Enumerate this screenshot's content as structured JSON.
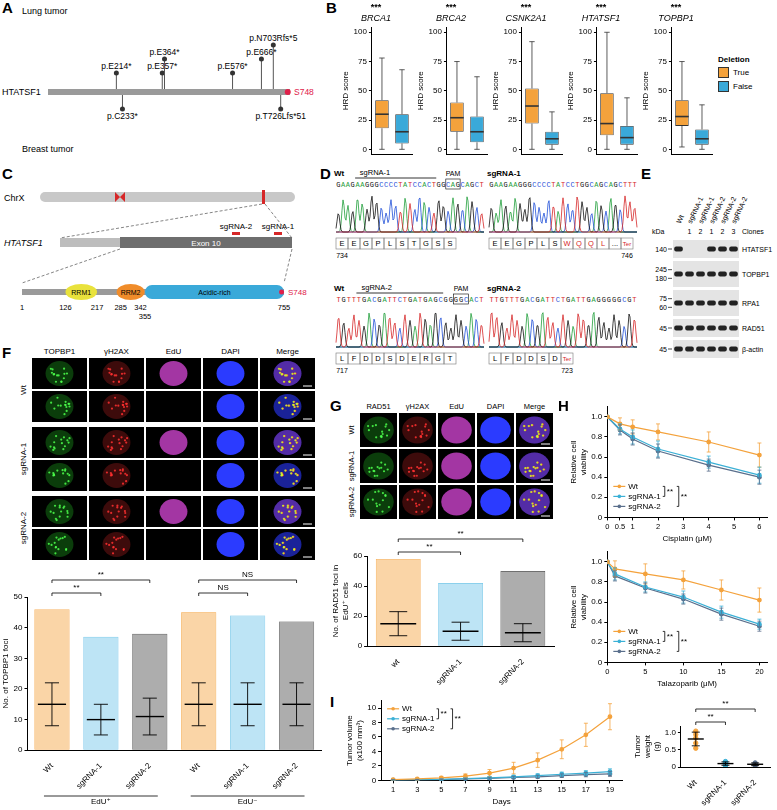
{
  "panel_letters": [
    "A",
    "B",
    "C",
    "D",
    "E",
    "F",
    "G",
    "H",
    "I"
  ],
  "A": {
    "gene": "HTATSF1",
    "length": 755,
    "tracks": [
      "Lung tumor",
      "Breast tumor"
    ],
    "above": [
      {
        "label": "p.E214*",
        "pos": 214
      },
      {
        "label": "p.E357*",
        "pos": 357
      },
      {
        "label": "p.E364*",
        "pos": 364
      },
      {
        "label": "p.E576*",
        "pos": 576
      },
      {
        "label": "p.E666*",
        "pos": 666
      },
      {
        "label": "p.N703Rfs*5",
        "pos": 703
      }
    ],
    "below": [
      {
        "label": "p.C233*",
        "pos": 233
      },
      {
        "label": "p.T726Lfs*51",
        "pos": 726
      }
    ],
    "site": {
      "label": "S748",
      "pos": 748
    }
  },
  "C": {
    "chromosome": "ChrX",
    "gene": "HTATSF1",
    "exon": "Exon 10",
    "sgrnas": [
      "sgRNA-2",
      "sgRNA-1"
    ],
    "protein": {
      "start": 1,
      "length": 755,
      "domains": [
        {
          "name": "RRM1",
          "start": 126,
          "end": 217,
          "color": "#e9e23c"
        },
        {
          "name": "RRM2",
          "start": 285,
          "end": 342,
          "color": "#f08c2a"
        },
        {
          "name": "Acidic-rich",
          "start": 355,
          "end": 755,
          "color": "#3aa9d9"
        }
      ],
      "site": {
        "label": "S748",
        "pos": 748
      }
    }
  },
  "D": {
    "panels": [
      {
        "row_label": "Wt",
        "guide": "sgRNA-1",
        "pam": "PAM",
        "sequence": "GAAGAAGGGCCCCTATCCACTGGCAGCAGCT",
        "start": 734,
        "residues": [
          "E",
          "E",
          "G",
          "P",
          "L",
          "S",
          "T",
          "G",
          "S",
          "S"
        ]
      },
      {
        "row_label": "sgRNA-1",
        "sequence": "GAAGAAGGGCCCCTATCCTGGCAGCAGCTTT",
        "residues": [
          "E",
          "E",
          "G",
          "P",
          "L",
          "S",
          "W",
          "Q",
          "Q",
          "L",
          "..."
        ],
        "changed": [
          6,
          7,
          8,
          9
        ],
        "end": {
          "number": 746,
          "label": "Ter"
        }
      },
      {
        "row_label": "Wt",
        "guide": "sgRNA-2",
        "pam": "PAM",
        "sequence": "TGTTTGACGATTCTGATGAGCGGGGCACT",
        "start": 717,
        "residues": [
          "L",
          "F",
          "D",
          "D",
          "S",
          "D",
          "E",
          "R",
          "G",
          "T"
        ]
      },
      {
        "row_label": "sgRNA-2",
        "sequence": "TTGTTTGACGATTCTGATTGAGGGGGCGT",
        "residues": [
          "L",
          "F",
          "D",
          "D",
          "S",
          "D"
        ],
        "end": {
          "number": 723,
          "label": "Ter"
        }
      }
    ]
  },
  "E": {
    "size_unit": "kDa",
    "clone_title": "Clones",
    "lanes": [
      {
        "label": "Wt"
      },
      {
        "label": "sgRNA-1",
        "clone": 1
      },
      {
        "label": "sgRNA-1",
        "clone": 2
      },
      {
        "label": "sgRNA-2",
        "clone": 1
      },
      {
        "label": "sgRNA-2",
        "clone": 2
      },
      {
        "label": "sgRNA-2",
        "clone": 3
      }
    ],
    "rows": [
      {
        "name": "HTATSF1",
        "markers": [
          140
        ],
        "bands": [
          true,
          false,
          false,
          true,
          true,
          true
        ]
      },
      {
        "name": "TOPBP1",
        "markers": [
          245,
          180
        ],
        "bands": [
          true,
          true,
          true,
          true,
          true,
          true
        ]
      },
      {
        "name": "RPA1",
        "markers": [
          75,
          60
        ],
        "bands": [
          true,
          true,
          true,
          true,
          true,
          true
        ]
      },
      {
        "name": "RAD51",
        "markers": [
          45
        ],
        "bands": [
          true,
          true,
          true,
          true,
          true,
          true
        ]
      },
      {
        "name": "β-actin",
        "markers": [
          45
        ],
        "bands": [
          true,
          true,
          true,
          true,
          true,
          true
        ]
      }
    ]
  },
  "F_images": {
    "channels": [
      "TOPBP1",
      "γH2AX",
      "EdU",
      "DAPI",
      "Merge"
    ],
    "rows": [
      {
        "label": "Wt",
        "edu": [
          true,
          false
        ]
      },
      {
        "label": "sgRNA-1",
        "edu": [
          true,
          false
        ]
      },
      {
        "label": "sgRNA-2",
        "edu": [
          true,
          false
        ]
      }
    ]
  },
  "G_images": {
    "channels": [
      "RAD51",
      "γH2AX",
      "EdU",
      "DAPI",
      "Merge"
    ],
    "rows": [
      {
        "label": "Wt"
      },
      {
        "label": "sgRNA-1"
      },
      {
        "label": "sgRNA-2"
      }
    ]
  },
  "chart_data": [
    {
      "type": "boxplot",
      "y_label": "HRD score",
      "ylim": [
        -4,
        104
      ],
      "yticks": [
        0,
        25,
        50,
        75,
        100
      ],
      "grid": false,
      "tick_labels": "y",
      "legend": "right",
      "legend_title": "Deletion",
      "series": [
        {
          "name": "True",
          "color": "#f4a23c"
        },
        {
          "name": "False",
          "color": "#3aa9d9"
        }
      ],
      "groups": [
        {
          "title": "BRCA1",
          "annotation": "***",
          "boxes": [
            [
              0,
              18,
              30,
              42,
              78
            ],
            [
              0,
              5,
              15,
              30,
              68
            ]
          ]
        },
        {
          "title": "BRCA2",
          "annotation": "***",
          "boxes": [
            [
              0,
              15,
              27,
              40,
              75
            ],
            [
              0,
              6,
              15,
              28,
              62
            ]
          ]
        },
        {
          "title": "CSNK2A1",
          "annotation": "***",
          "boxes": [
            [
              0,
              22,
              37,
              52,
              92
            ],
            [
              0,
              4,
              9,
              15,
              32
            ]
          ]
        },
        {
          "title": "HTATSF1",
          "annotation": "***",
          "boxes": [
            [
              0,
              12,
              22,
              48,
              100
            ],
            [
              0,
              4,
              10,
              20,
              44
            ]
          ]
        },
        {
          "title": "TOPBP1",
          "annotation": "***",
          "boxes": [
            [
              2,
              20,
              28,
              42,
              75
            ],
            [
              0,
              4,
              9,
              17,
              38
            ]
          ]
        }
      ]
    },
    {
      "type": "dot",
      "y_label": "No. of TOPBP1 foci",
      "categories": [
        "Wt",
        "sgRNA-1",
        "sgRNA-2",
        "Wt",
        "sgRNA-1",
        "sgRNA-2"
      ],
      "groups": [
        {
          "label": "EdU⁺",
          "size": 3
        },
        {
          "label": "EdU⁻",
          "size": 3
        }
      ],
      "colors": [
        "#f4a23c",
        "#6cc3e8",
        "#4a4a4a",
        "#f4a23c",
        "#6cc3e8",
        "#4a4a4a"
      ],
      "mean": [
        15,
        10,
        11,
        15,
        15,
        15
      ],
      "sd": [
        7,
        5,
        6,
        7,
        7,
        7
      ],
      "range": [
        [
          0,
          46
        ],
        [
          0,
          37
        ],
        [
          0,
          38
        ],
        [
          0,
          45
        ],
        [
          0,
          44
        ],
        [
          0,
          42
        ]
      ],
      "ylim": [
        0,
        50
      ],
      "yticks": [
        0,
        10,
        20,
        30,
        40,
        50
      ],
      "grid": false,
      "comparisons": [
        {
          "pair": [
            0,
            1
          ],
          "label": "**"
        },
        {
          "pair": [
            0,
            2
          ],
          "label": "**"
        },
        {
          "pair": [
            3,
            4
          ],
          "label": "NS"
        },
        {
          "pair": [
            3,
            5
          ],
          "label": "NS"
        }
      ]
    },
    {
      "type": "dot",
      "y_label": "No. of RAD51 foci in EdU⁺ cells",
      "categories": [
        "wt",
        "sgRNA-1",
        "sgRNA-2"
      ],
      "colors": [
        "#f4a23c",
        "#6cc3e8",
        "#4a4a4a"
      ],
      "mean": [
        15,
        10,
        9
      ],
      "sd": [
        8,
        6,
        6
      ],
      "range": [
        [
          0,
          58
        ],
        [
          0,
          42
        ],
        [
          0,
          50
        ]
      ],
      "ylim": [
        0,
        60
      ],
      "yticks": [
        0,
        20,
        40,
        60
      ],
      "grid": false,
      "comparisons": [
        {
          "pair": [
            0,
            1
          ],
          "label": "**"
        },
        {
          "pair": [
            0,
            2
          ],
          "label": "**"
        }
      ]
    },
    {
      "type": "line",
      "x_label": "Cisplatin (μM)",
      "y_label": "Relative cell viability",
      "x": [
        0,
        0.5,
        1,
        2,
        4,
        6
      ],
      "xlim": [
        0,
        6.3
      ],
      "xticks": [
        0,
        0.5,
        1,
        2,
        3,
        4,
        5,
        6
      ],
      "ylim": [
        0,
        1.1
      ],
      "yticks": [
        0,
        0.2,
        0.4,
        0.6,
        0.8,
        {
          "value": 1,
          "label": "1.0"
        }
      ],
      "marker": "circle",
      "legend": "lower left",
      "grid": false,
      "series": [
        {
          "name": "Wt",
          "color": "#f4a23c",
          "values": [
            1,
            0.93,
            0.9,
            0.85,
            0.75,
            0.62
          ],
          "errors": [
            0,
            0.06,
            0.07,
            0.08,
            0.1,
            0.12
          ]
        },
        {
          "name": "sgRNA-1",
          "color": "#3bb0d6",
          "values": [
            1,
            0.88,
            0.8,
            0.68,
            0.55,
            0.42
          ],
          "errors": [
            0,
            0.05,
            0.07,
            0.08,
            0.06,
            0.08
          ]
        },
        {
          "name": "sgRNA-2",
          "color": "#5a6f8c",
          "values": [
            1,
            0.87,
            0.78,
            0.66,
            0.52,
            0.4
          ],
          "errors": [
            0,
            0.05,
            0.06,
            0.07,
            0.06,
            0.07
          ]
        }
      ],
      "comparisons": [
        {
          "pair": [
            0,
            1
          ],
          "label": "**"
        },
        {
          "pair": [
            0,
            2
          ],
          "label": "**"
        }
      ]
    },
    {
      "type": "line",
      "x_label": "Talazoparib (μM)",
      "y_label": "Relative cell viability",
      "x": [
        0,
        1,
        5,
        10,
        15,
        20
      ],
      "xlim": [
        0,
        21
      ],
      "xticks": [
        0,
        5,
        10,
        15,
        20
      ],
      "ylim": [
        0,
        1.1
      ],
      "yticks": [
        0,
        0.2,
        0.4,
        0.6,
        0.8,
        {
          "value": 1,
          "label": "1.0"
        }
      ],
      "marker": "circle",
      "legend": "lower left",
      "grid": false,
      "series": [
        {
          "name": "Wt",
          "color": "#f4a23c",
          "values": [
            1,
            0.93,
            0.88,
            0.82,
            0.72,
            0.62
          ],
          "errors": [
            0,
            0.08,
            0.1,
            0.09,
            0.1,
            0.12
          ]
        },
        {
          "name": "sgRNA-1",
          "color": "#3bb0d6",
          "values": [
            1,
            0.88,
            0.75,
            0.65,
            0.5,
            0.38
          ],
          "errors": [
            0,
            0.06,
            0.05,
            0.06,
            0.06,
            0.05
          ]
        },
        {
          "name": "sgRNA-2",
          "color": "#5a6f8c",
          "values": [
            1,
            0.86,
            0.74,
            0.63,
            0.48,
            0.36
          ],
          "errors": [
            0,
            0.05,
            0.05,
            0.05,
            0.06,
            0.05
          ]
        }
      ],
      "comparisons": [
        {
          "pair": [
            0,
            1
          ],
          "label": "**"
        },
        {
          "pair": [
            0,
            2
          ],
          "label": "**"
        }
      ]
    },
    {
      "type": "line",
      "x_label": "Days",
      "y_label": "Tumor volume (x100 mm³)",
      "x": [
        1,
        3,
        5,
        7,
        9,
        11,
        13,
        15,
        17,
        19
      ],
      "xlim": [
        0,
        20
      ],
      "xticks": [
        1,
        3,
        5,
        7,
        9,
        11,
        13,
        15,
        17,
        19
      ],
      "ylim": [
        0,
        11
      ],
      "yticks": [
        0,
        2,
        4,
        6,
        8,
        10
      ],
      "marker": "circle",
      "legend": "upper left",
      "grid": false,
      "series": [
        {
          "name": "Wt",
          "color": "#f4a23c",
          "values": [
            0.1,
            0.2,
            0.35,
            0.6,
            1.0,
            1.7,
            2.8,
            4.3,
            6.3,
            8.8
          ],
          "errors": [
            0.05,
            0.1,
            0.2,
            0.3,
            0.5,
            0.8,
            1.0,
            1.3,
            1.6,
            1.8
          ]
        },
        {
          "name": "sgRNA-1",
          "color": "#3bb0d6",
          "values": [
            0.05,
            0.1,
            0.15,
            0.25,
            0.35,
            0.5,
            0.65,
            0.85,
            1.0,
            1.2
          ],
          "errors": [
            0.03,
            0.05,
            0.08,
            0.1,
            0.15,
            0.2,
            0.25,
            0.3,
            0.35,
            0.4
          ]
        },
        {
          "name": "sgRNA-2",
          "color": "#5a6f8c",
          "values": [
            0.05,
            0.08,
            0.12,
            0.2,
            0.28,
            0.4,
            0.5,
            0.65,
            0.8,
            0.9
          ],
          "errors": [
            0.03,
            0.04,
            0.06,
            0.08,
            0.1,
            0.15,
            0.2,
            0.25,
            0.3,
            0.35
          ]
        }
      ],
      "comparisons": [
        {
          "pair": [
            0,
            1
          ],
          "label": "**"
        },
        {
          "pair": [
            0,
            2
          ],
          "label": "**"
        }
      ]
    },
    {
      "type": "scatter",
      "y_label": "Tumor weight (g)",
      "categories": [
        "Wt",
        "sgRNA-1",
        "sgRNA-2"
      ],
      "colors": [
        "#f4a23c",
        "#3bb0d6",
        "#5a6f8c"
      ],
      "points": [
        [
          0.55,
          0.7,
          0.85,
          0.95,
          1.05
        ],
        [
          0.03,
          0.07,
          0.1,
          0.13,
          0.16
        ],
        [
          0.04,
          0.07,
          0.09,
          0.12
        ]
      ],
      "mean": [
        0.82,
        0.1,
        0.08
      ],
      "sd": [
        0.2,
        0.05,
        0.04
      ],
      "ylim": [
        0,
        1.2
      ],
      "yticks": [
        0,
        0.5,
        {
          "value": 1,
          "label": "1.0"
        }
      ],
      "marker": "circle",
      "grid": false,
      "comparisons": [
        {
          "pair": [
            0,
            1
          ],
          "label": "**"
        },
        {
          "pair": [
            0,
            2
          ],
          "label": "**"
        }
      ]
    }
  ]
}
